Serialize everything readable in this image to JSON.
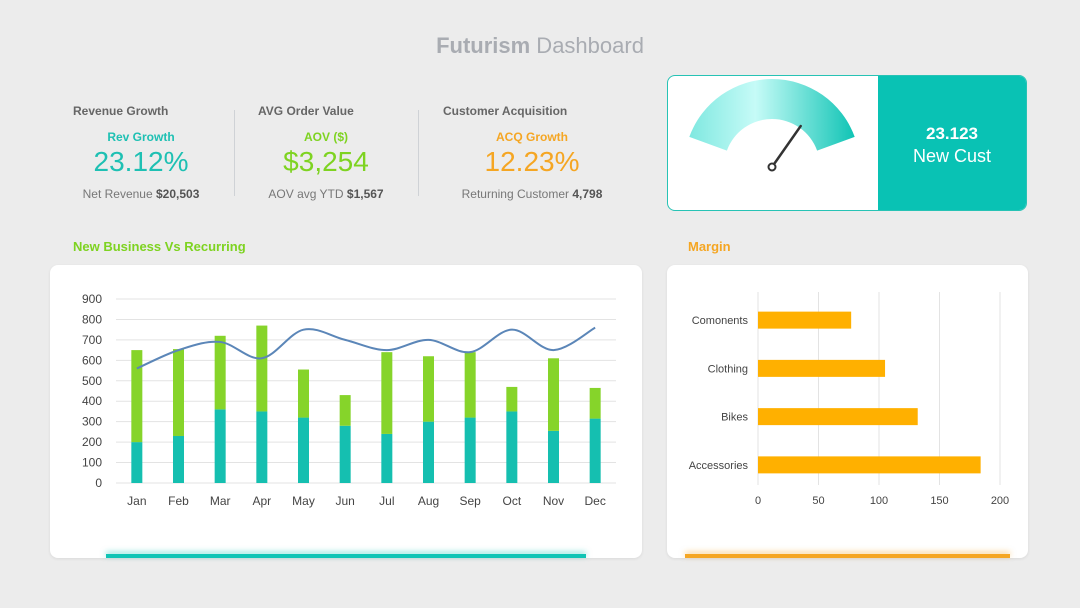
{
  "header": {
    "title_bold": "Futurism",
    "title_rest": " Dashboard"
  },
  "kpis": [
    {
      "heading": "Revenue Growth",
      "sub": "Rev Growth",
      "value": "23.12%",
      "foot_text": "Net Revenue ",
      "foot_value": "$20,503",
      "color": "#1ec0b3"
    },
    {
      "heading": "AVG Order Value",
      "sub": "AOV ($)",
      "value": "$3,254",
      "foot_text": "AOV avg YTD ",
      "foot_value": "$1,567",
      "color": "#7ed321"
    },
    {
      "heading": "Customer Acquisition",
      "sub": "ACQ Growth",
      "value": "12.23%",
      "foot_text": "Returning Customer ",
      "foot_value": "4,798",
      "color": "#f5a623"
    }
  ],
  "gauge": {
    "value_text": "23.123",
    "label": "New Cust",
    "needle_fraction": 0.75
  },
  "sections": {
    "left_title": "New Business Vs Recurring",
    "right_title": "Margin"
  },
  "chart_data": [
    {
      "type": "bar",
      "stacked": true,
      "categories": [
        "Jan",
        "Feb",
        "Mar",
        "Apr",
        "May",
        "Jun",
        "Jul",
        "Aug",
        "Sep",
        "Oct",
        "Nov",
        "Dec"
      ],
      "series": [
        {
          "values": [
            200,
            230,
            360,
            350,
            320,
            280,
            240,
            300,
            320,
            350,
            255,
            315
          ],
          "color": "#15bfb0"
        },
        {
          "values": [
            450,
            425,
            360,
            420,
            235,
            150,
            400,
            320,
            320,
            120,
            355,
            150
          ],
          "color": "#86d42a"
        }
      ],
      "line": {
        "values": [
          560,
          650,
          690,
          610,
          750,
          700,
          650,
          700,
          640,
          750,
          650,
          760
        ],
        "color": "#5b86b8"
      },
      "ylim": [
        0,
        900
      ],
      "yticks": [
        0,
        100,
        200,
        300,
        400,
        500,
        600,
        700,
        800,
        900
      ],
      "grid": true
    },
    {
      "type": "bar",
      "orientation": "horizontal",
      "categories": [
        "Comonents",
        "Clothing",
        "Bikes",
        "Accessories"
      ],
      "values": [
        77,
        105,
        132,
        184
      ],
      "color": "#ffb000",
      "xlim": [
        0,
        200
      ],
      "xticks": [
        0,
        50,
        100,
        150,
        200
      ],
      "grid": true
    }
  ]
}
